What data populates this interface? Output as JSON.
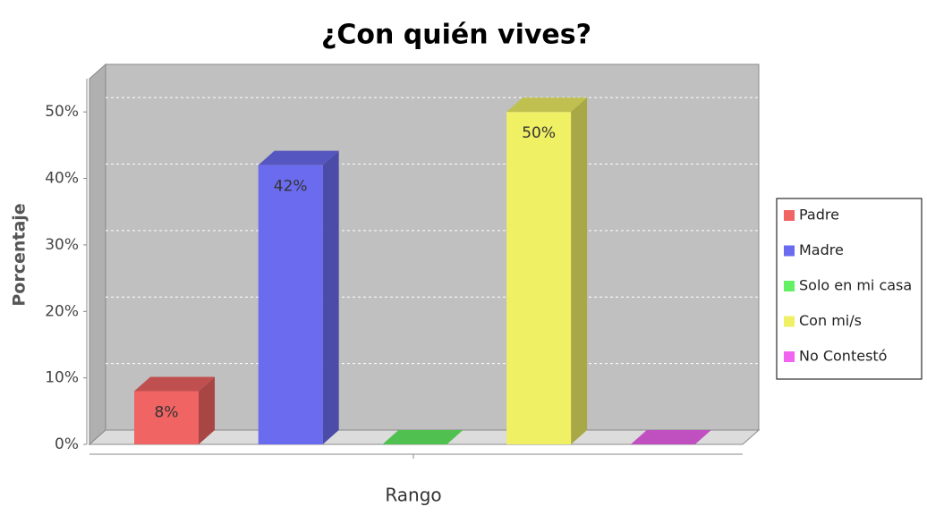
{
  "chart_data": {
    "type": "bar3d",
    "title": "¿Con quién vives?",
    "x_label": "Rango",
    "y_label": "Porcentaje",
    "categories": [
      null
    ],
    "series": [
      {
        "name": "Padre",
        "color": "#f06464",
        "values": [
          8
        ],
        "value_labels": [
          "8%"
        ]
      },
      {
        "name": "Madre",
        "color": "#6b6bf0",
        "values": [
          42
        ],
        "value_labels": [
          "42%"
        ]
      },
      {
        "name": "Solo en mi casa",
        "color": "#64f064",
        "values": [
          0
        ]
      },
      {
        "name": "Con mi/s",
        "color": "#f0f064",
        "values": [
          50
        ],
        "value_labels": [
          "50%"
        ]
      },
      {
        "name": "No Contestó",
        "color": "#f064f0",
        "values": [
          0
        ]
      }
    ],
    "ylim": [
      0,
      55
    ],
    "yticks": [
      {
        "value": 0,
        "label": "0%"
      },
      {
        "value": 10,
        "label": "10%"
      },
      {
        "value": 20,
        "label": "20%"
      },
      {
        "value": 30,
        "label": "30%"
      },
      {
        "value": 40,
        "label": "40%"
      },
      {
        "value": 50,
        "label": "50%"
      }
    ],
    "grid": true,
    "legend": "right"
  }
}
